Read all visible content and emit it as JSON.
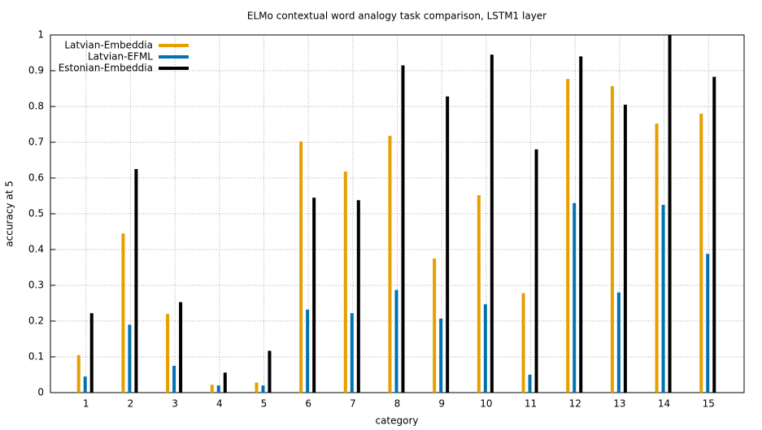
{
  "chart_data": {
    "type": "bar",
    "title": "ELMo contextual word analogy task comparison, LSTM1 layer",
    "x_label": "category",
    "y_label": "accuracy at 5",
    "x": [
      1,
      2,
      3,
      4,
      5,
      6,
      7,
      8,
      9,
      10,
      11,
      12,
      13,
      14,
      15
    ],
    "xlim": [
      0.2,
      15.8
    ],
    "xticks": [
      1,
      2,
      3,
      4,
      5,
      6,
      7,
      8,
      9,
      10,
      11,
      12,
      13,
      14,
      15
    ],
    "ylim": [
      0,
      1
    ],
    "yticks": [
      0,
      0.1,
      0.2,
      0.3,
      0.4,
      0.5,
      0.6,
      0.7,
      0.8,
      0.9,
      1
    ],
    "grid": true,
    "legend": "top-left",
    "series": [
      {
        "name": "Latvian-Embeddia",
        "color": "#e69f00",
        "values": [
          0.105,
          0.445,
          0.22,
          0.022,
          0.028,
          0.702,
          0.618,
          0.718,
          0.375,
          0.552,
          0.278,
          0.877,
          0.857,
          0.752,
          0.78
        ]
      },
      {
        "name": "Latvian-EFML",
        "color": "#0072b2",
        "values": [
          0.045,
          0.19,
          0.075,
          0.02,
          0.02,
          0.232,
          0.222,
          0.287,
          0.207,
          0.247,
          0.05,
          0.53,
          0.28,
          0.525,
          0.388
        ]
      },
      {
        "name": "Estonian-Embeddia",
        "color": "#000000",
        "values": [
          0.222,
          0.625,
          0.253,
          0.056,
          0.117,
          0.545,
          0.538,
          0.915,
          0.828,
          0.945,
          0.68,
          0.94,
          0.805,
          1.0,
          0.883
        ]
      }
    ]
  }
}
